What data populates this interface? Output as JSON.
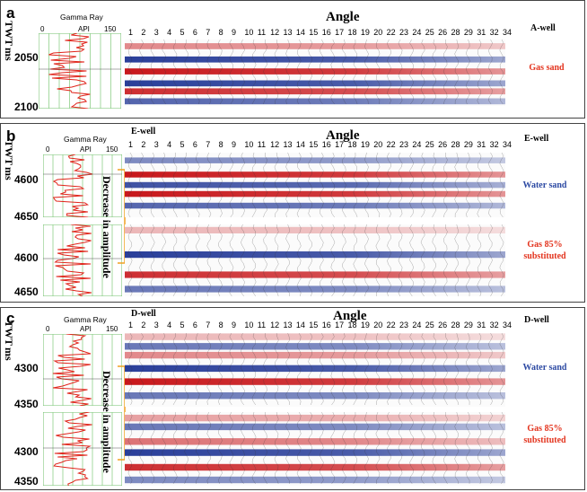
{
  "colors": {
    "red": "#c8181c",
    "blue": "#2a3f9a",
    "gr_grid": "#8fd08a",
    "gr_curve": "#e0251b",
    "note_red": "#e3341e",
    "note_blue": "#2d4aa3",
    "bracket": "#f0a020"
  },
  "gamma": {
    "title": "Gamma Ray",
    "unit": "API",
    "min": "0",
    "max": "150"
  },
  "angle": {
    "title": "Angle",
    "ticks": [
      "1",
      "2",
      "3",
      "4",
      "5",
      "6",
      "7",
      "8",
      "9",
      "10",
      "11",
      "12",
      "13",
      "14",
      "15",
      "16",
      "17",
      "18",
      "19",
      "20",
      "22",
      "23",
      "24",
      "25",
      "26",
      "28",
      "29",
      "31",
      "32",
      "34"
    ]
  },
  "panel_a": {
    "label": "a",
    "twt": [
      "TWT",
      "ms"
    ],
    "depths": [
      "2050",
      "2100"
    ],
    "well": "A-well",
    "note": "Gas sand"
  },
  "panel_b": {
    "label": "b",
    "twt": [
      "TWT",
      "ms"
    ],
    "depths": [
      "4600",
      "4650",
      "4600",
      "4650"
    ],
    "well_left": "E-well",
    "well": "E-well",
    "note_water": "Water sand",
    "note_gas": [
      "Gas 85%",
      "substituted"
    ],
    "rotated": "Decrease in amplitude"
  },
  "panel_c": {
    "label": "c",
    "twt": [
      "TWT",
      "ms"
    ],
    "depths": [
      "4300",
      "4350",
      "4300",
      "4350"
    ],
    "well_left": "D-well",
    "well": "D-well",
    "note_water": "Water sand",
    "note_gas": [
      "Gas 85%",
      "substituted"
    ],
    "rotated": "Decrease in amplitude"
  }
}
